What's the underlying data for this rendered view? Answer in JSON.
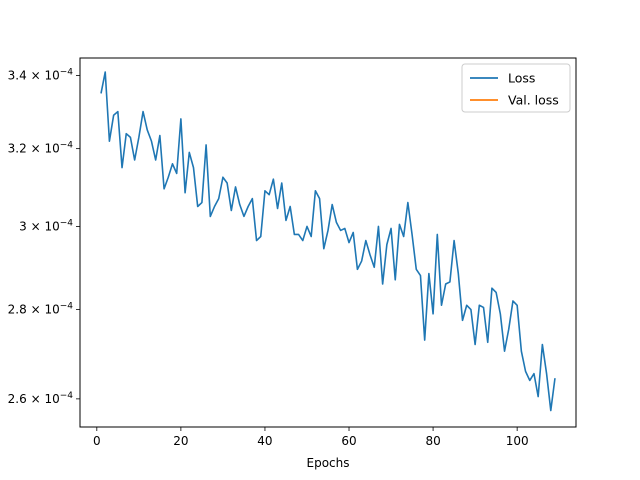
{
  "chart_data": {
    "type": "line",
    "title": "",
    "xlabel": "Epochs",
    "ylabel": "",
    "yscale": "log",
    "xlim": [
      -4,
      114
    ],
    "ylim": [
      0.000254,
      0.000345
    ],
    "xticks": [
      0,
      20,
      40,
      60,
      80,
      100
    ],
    "xtick_labels": [
      "0",
      "20",
      "40",
      "60",
      "80",
      "100"
    ],
    "yticks": [
      0.00026,
      0.00028,
      0.0003,
      0.00032,
      0.00034
    ],
    "ytick_mantissa": [
      "2.6",
      "2.8",
      "3",
      "3.2",
      "3.4"
    ],
    "ytick_base": "10",
    "ytick_exp": "−4",
    "grid": false,
    "legend_position": "top-right",
    "legend": [
      "Loss",
      "Val. loss"
    ],
    "series": [
      {
        "name": "Loss",
        "color": "#1f77b4",
        "x": [
          1,
          2,
          3,
          4,
          5,
          6,
          7,
          8,
          9,
          10,
          11,
          12,
          13,
          14,
          15,
          16,
          17,
          18,
          19,
          20,
          21,
          22,
          23,
          24,
          25,
          26,
          27,
          28,
          29,
          30,
          31,
          32,
          33,
          34,
          35,
          36,
          37,
          38,
          39,
          40,
          41,
          42,
          43,
          44,
          45,
          46,
          47,
          48,
          49,
          50,
          51,
          52,
          53,
          54,
          55,
          56,
          57,
          58,
          59,
          60,
          61,
          62,
          63,
          64,
          65,
          66,
          67,
          68,
          69,
          70,
          71,
          72,
          73,
          74,
          75,
          76,
          77,
          78,
          79,
          80,
          81,
          82,
          83,
          84,
          85,
          86,
          87,
          88,
          89,
          90,
          91,
          92,
          93,
          94,
          95,
          96,
          97,
          98,
          99,
          100,
          101,
          102,
          103,
          104,
          105,
          106,
          107,
          108,
          109
        ],
        "y": [
          0.000335,
          0.000341,
          0.000322,
          0.000329,
          0.00033,
          0.000315,
          0.000324,
          0.000323,
          0.000317,
          0.000323,
          0.00033,
          0.000325,
          0.000322,
          0.000317,
          0.0003235,
          0.0003095,
          0.0003125,
          0.000316,
          0.0003135,
          0.000328,
          0.0003085,
          0.000319,
          0.000315,
          0.000305,
          0.000306,
          0.000321,
          0.0003025,
          0.000305,
          0.000307,
          0.0003125,
          0.000311,
          0.000304,
          0.00031,
          0.0003055,
          0.0003025,
          0.000305,
          0.000307,
          0.0002965,
          0.0002975,
          0.000309,
          0.000308,
          0.000312,
          0.0003045,
          0.000311,
          0.0003015,
          0.000305,
          0.000298,
          0.000298,
          0.0002965,
          0.0003,
          0.0002975,
          0.000309,
          0.000307,
          0.0002945,
          0.000299,
          0.0003055,
          0.000301,
          0.000299,
          0.0002995,
          0.000296,
          0.0002985,
          0.0002895,
          0.0002915,
          0.0002965,
          0.000293,
          0.00029,
          0.0003,
          0.000286,
          0.0002955,
          0.0002995,
          0.000287,
          0.0003005,
          0.0002975,
          0.000306,
          0.000298,
          0.0002895,
          0.000288,
          0.000273,
          0.0002885,
          0.000279,
          0.000298,
          0.000281,
          0.000286,
          0.0002865,
          0.0002965,
          0.0002885,
          0.0002775,
          0.000281,
          0.00028,
          0.000272,
          0.000281,
          0.0002805,
          0.0002725,
          0.000285,
          0.000284,
          0.000279,
          0.0002705,
          0.0002755,
          0.000282,
          0.000281,
          0.0002705,
          0.000266,
          0.000264,
          0.0002655,
          0.0002605,
          0.000272,
          0.0002655,
          0.0002575,
          0.0002645
        ]
      },
      {
        "name": "Val. loss",
        "color": "#ff7f0e",
        "x": [],
        "y": []
      }
    ]
  }
}
